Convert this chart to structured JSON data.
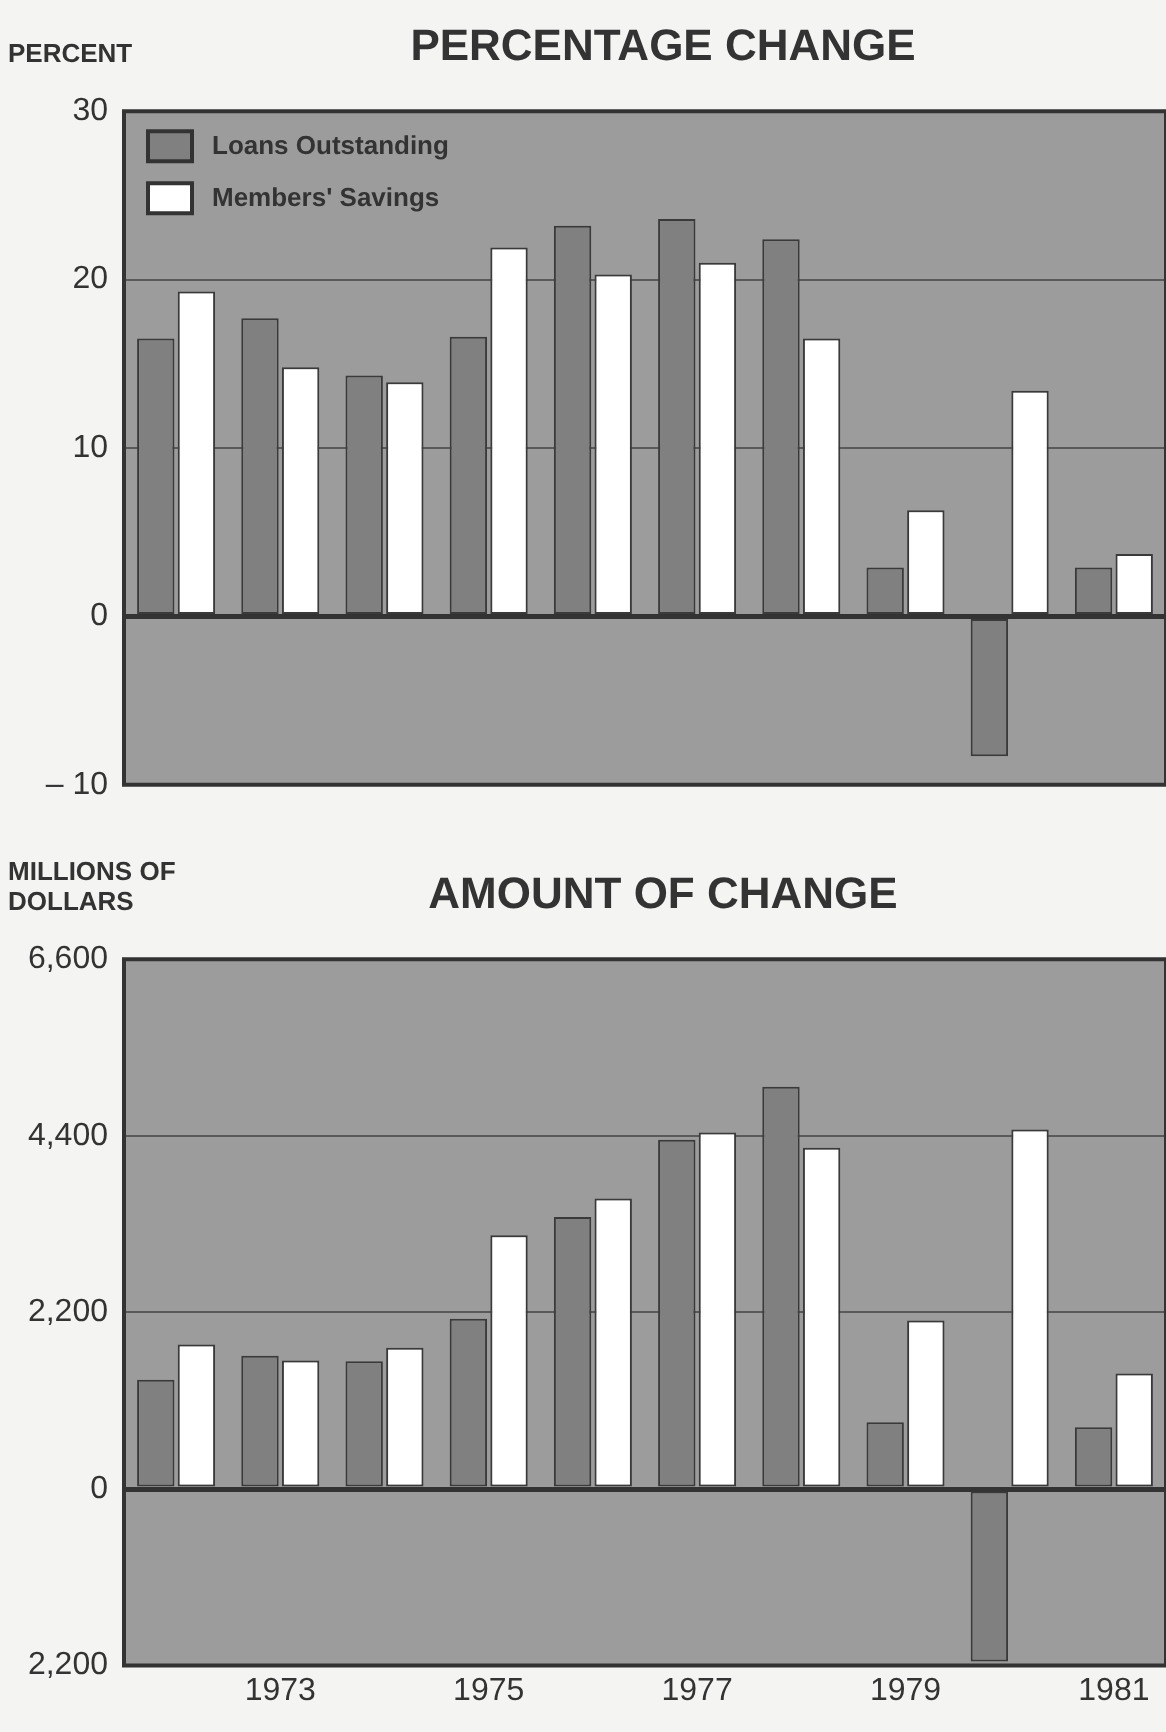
{
  "chart_data": [
    {
      "type": "bar",
      "title": "PERCENTAGE CHANGE",
      "ylabel": "PERCENT",
      "categories": [
        null,
        "1973",
        null,
        "1975",
        null,
        "1977",
        null,
        "1979",
        null,
        "1981"
      ],
      "series": [
        {
          "name": "Loans Outstanding",
          "color": "#808080",
          "values": [
            16.5,
            17.7,
            14.3,
            16.6,
            23.2,
            23.6,
            22.4,
            2.9,
            -8.3,
            2.9
          ]
        },
        {
          "name": "Members' Savings",
          "color": "#ffffff",
          "values": [
            19.3,
            14.8,
            13.9,
            21.9,
            20.3,
            21.0,
            16.5,
            6.3,
            13.4,
            3.7
          ]
        }
      ],
      "ylim": [
        -10,
        30
      ],
      "yticks": [
        {
          "value": -10,
          "label": "– 10"
        },
        0,
        10,
        20,
        30
      ],
      "grid": "y",
      "legend": "top left",
      "tick_labels": "y"
    },
    {
      "type": "bar",
      "title": "AMOUNT OF CHANGE",
      "ylabel": "MILLIONS OF DOLLARS",
      "categories": [
        null,
        "1973",
        null,
        "1975",
        null,
        "1977",
        null,
        "1979",
        null,
        "1981"
      ],
      "series": [
        {
          "color": "#808080",
          "values": [
            1360,
            1660,
            1590,
            2120,
            3390,
            4350,
            5010,
            830,
            -2150,
            770
          ]
        },
        {
          "color": "#ffffff",
          "values": [
            1800,
            1600,
            1760,
            3160,
            3620,
            4440,
            4250,
            2100,
            4480,
            1440
          ]
        }
      ],
      "ylim": [
        -2200,
        6600
      ],
      "yticks": [
        {
          "value": -2200,
          "label": "2,200"
        },
        {
          "value": 0,
          "label": "0"
        },
        {
          "value": 2200,
          "label": "2,200"
        },
        {
          "value": 4400,
          "label": "4,400"
        },
        {
          "value": 6600,
          "label": "6,600"
        }
      ],
      "grid": "y"
    }
  ]
}
